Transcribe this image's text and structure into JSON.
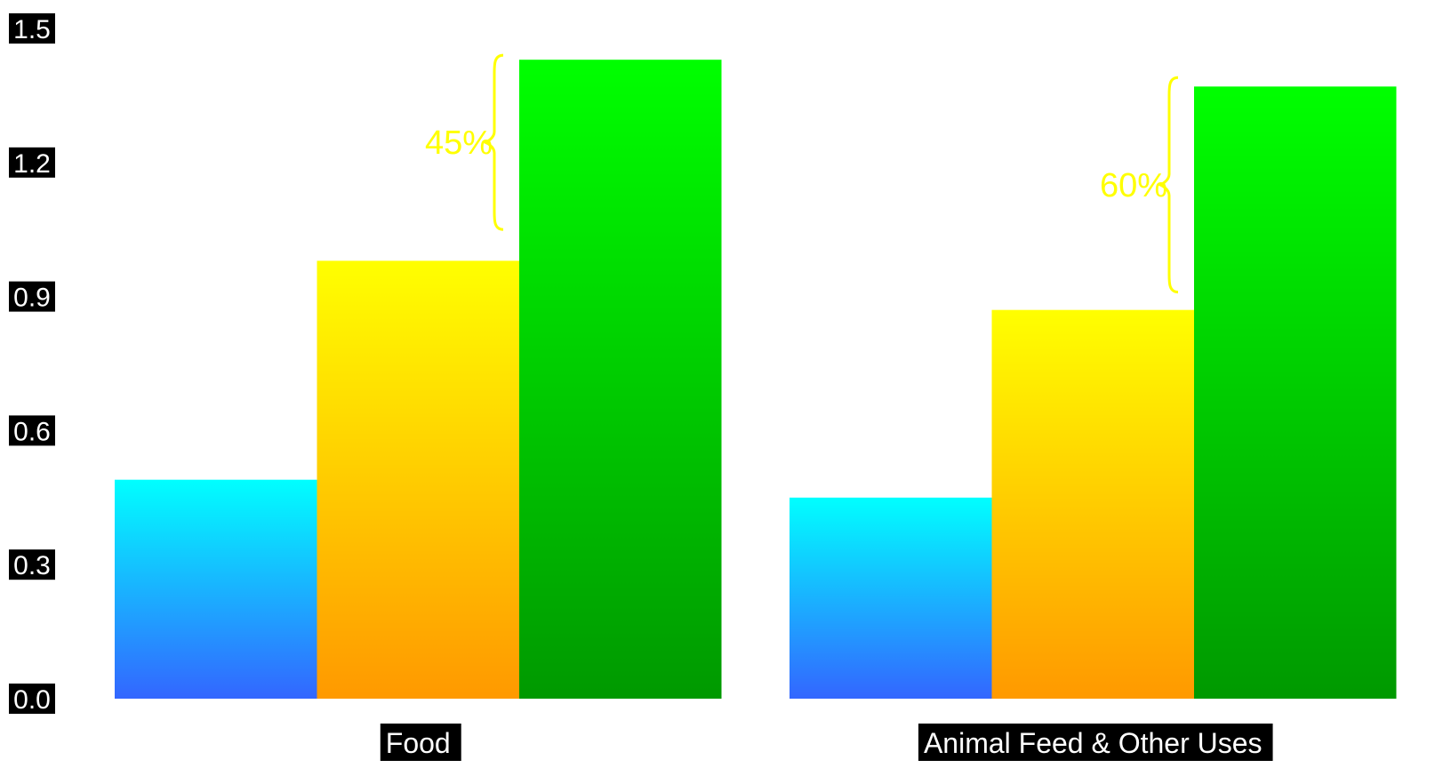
{
  "chart_data": {
    "type": "bar",
    "categories": [
      "Food",
      "Animal Feed & Other Uses"
    ],
    "series": [
      {
        "values": [
          0.49,
          0.45
        ],
        "gradient": [
          "#00ffff",
          "#3366ff"
        ]
      },
      {
        "values": [
          0.98,
          0.87
        ],
        "gradient": [
          "#ffff00",
          "#ff9900"
        ]
      },
      {
        "values": [
          1.43,
          1.37
        ],
        "gradient": [
          "#00ff00",
          "#009900"
        ]
      }
    ],
    "ylim": [
      0,
      1.5
    ],
    "yticks": [
      "0.0",
      "0.3",
      "0.6",
      "0.9",
      "1.2",
      "1.5"
    ],
    "annotations": [
      {
        "text": "45%",
        "category": 0,
        "from": 1.05,
        "to": 1.44
      },
      {
        "text": "60%",
        "category": 1,
        "from": 0.91,
        "to": 1.39
      }
    ],
    "annotation_color": "#ffff00",
    "grid": false,
    "legend": "none"
  }
}
